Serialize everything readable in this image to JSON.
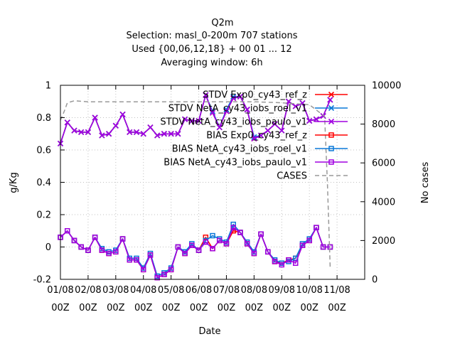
{
  "chart_data": {
    "type": "line",
    "title": "Q2m",
    "subtitle_lines": [
      "Selection: masl_0-200m    707 stations",
      "Used {00,06,12,18} + 00 01 ... 12",
      "Averaging window:  6h"
    ],
    "xlabel": "Date",
    "ylabel": "g/Kg",
    "y2label": "No cases",
    "xlim": [
      0,
      11
    ],
    "ylim": [
      -0.2,
      1.0
    ],
    "y2lim": [
      0,
      10000
    ],
    "x_ticks": [
      {
        "x": 0,
        "line1": "01/08",
        "line2": "00Z"
      },
      {
        "x": 1,
        "line1": "02/08",
        "line2": "00Z"
      },
      {
        "x": 2,
        "line1": "03/08",
        "line2": "00Z"
      },
      {
        "x": 3,
        "line1": "04/08",
        "line2": "00Z"
      },
      {
        "x": 4,
        "line1": "05/08",
        "line2": "00Z"
      },
      {
        "x": 5,
        "line1": "06/08",
        "line2": "00Z"
      },
      {
        "x": 6,
        "line1": "07/08",
        "line2": "00Z"
      },
      {
        "x": 7,
        "line1": "08/08",
        "line2": "00Z"
      },
      {
        "x": 8,
        "line1": "09/08",
        "line2": "00Z"
      },
      {
        "x": 9,
        "line1": "10/08",
        "line2": "00Z"
      },
      {
        "x": 10,
        "line1": "11/08",
        "line2": "00Z"
      }
    ],
    "y_ticks": [
      -0.2,
      0,
      0.2,
      0.4,
      0.6,
      0.8,
      1
    ],
    "y2_ticks": [
      0,
      2000,
      4000,
      6000,
      8000,
      10000
    ],
    "grid": true,
    "legend_position": "top-right",
    "x": [
      0,
      0.25,
      0.5,
      0.75,
      1,
      1.25,
      1.5,
      1.75,
      2,
      2.25,
      2.5,
      2.75,
      3,
      3.25,
      3.5,
      3.75,
      4,
      4.25,
      4.5,
      4.75,
      5,
      5.25,
      5.5,
      5.75,
      6,
      6.25,
      6.5,
      6.75,
      7,
      7.25,
      7.5,
      7.75,
      8,
      8.25,
      8.5,
      8.75,
      9,
      9.25,
      9.5,
      9.75
    ],
    "series": [
      {
        "name": "STDV Exp0_cy43_ref_z",
        "axis": "y1",
        "color": "#ff0000",
        "marker": "x",
        "values": [
          0.64,
          0.77,
          0.72,
          0.71,
          0.71,
          0.8,
          0.69,
          0.7,
          0.75,
          0.82,
          0.71,
          0.71,
          0.7,
          0.74,
          0.69,
          0.7,
          0.7,
          0.7,
          0.79,
          0.78,
          0.78,
          0.94,
          0.83,
          0.74,
          0.84,
          0.92,
          0.93,
          0.85,
          0.67,
          0.69,
          0.72,
          0.76,
          0.72,
          0.9,
          0.87,
          0.89,
          0.78,
          0.79,
          0.81,
          0.91
        ]
      },
      {
        "name": "STDV NetA_cy43_iobs_roel_v1",
        "axis": "y1",
        "color": "#0a78d8",
        "marker": "x",
        "values": [
          0.64,
          0.77,
          0.72,
          0.71,
          0.71,
          0.8,
          0.69,
          0.7,
          0.75,
          0.82,
          0.71,
          0.71,
          0.7,
          0.74,
          0.69,
          0.7,
          0.7,
          0.7,
          0.79,
          0.78,
          0.78,
          0.94,
          0.84,
          0.74,
          0.85,
          0.93,
          0.93,
          0.85,
          0.68,
          0.69,
          0.72,
          0.76,
          0.72,
          0.9,
          0.87,
          0.89,
          0.78,
          0.79,
          0.81,
          0.91
        ]
      },
      {
        "name": "STDV NetA_cy43_iobs_paulo_v1",
        "axis": "y1",
        "color": "#a000e0",
        "marker": "x",
        "values": [
          0.64,
          0.77,
          0.72,
          0.71,
          0.71,
          0.8,
          0.69,
          0.7,
          0.75,
          0.82,
          0.71,
          0.71,
          0.7,
          0.74,
          0.69,
          0.7,
          0.7,
          0.7,
          0.79,
          0.78,
          0.78,
          0.94,
          0.83,
          0.74,
          0.84,
          0.92,
          0.93,
          0.85,
          0.67,
          0.69,
          0.72,
          0.76,
          0.72,
          0.9,
          0.87,
          0.89,
          0.78,
          0.79,
          0.81,
          0.91
        ]
      },
      {
        "name": "BIAS Exp0_cy43_ref_z",
        "axis": "y1",
        "color": "#ff0000",
        "marker": "square",
        "values": [
          0.06,
          0.1,
          0.04,
          0.0,
          -0.02,
          0.06,
          -0.02,
          -0.04,
          -0.03,
          0.05,
          -0.08,
          -0.08,
          -0.14,
          -0.05,
          -0.19,
          -0.17,
          -0.14,
          0.0,
          -0.04,
          0.01,
          -0.02,
          0.06,
          -0.01,
          0.04,
          0.02,
          0.1,
          0.09,
          0.02,
          -0.04,
          0.08,
          -0.03,
          -0.09,
          -0.1,
          -0.08,
          -0.07,
          0.01,
          0.04,
          0.12,
          0.0,
          0.0
        ]
      },
      {
        "name": "BIAS NetA_cy43_iobs_roel_v1",
        "axis": "y1",
        "color": "#0a78d8",
        "marker": "square",
        "values": [
          0.06,
          0.1,
          0.04,
          0.0,
          -0.02,
          0.06,
          -0.01,
          -0.03,
          -0.02,
          0.05,
          -0.07,
          -0.07,
          -0.13,
          -0.04,
          -0.18,
          -0.16,
          -0.13,
          0.0,
          -0.03,
          0.02,
          -0.02,
          0.04,
          0.07,
          0.05,
          0.03,
          0.14,
          0.09,
          0.03,
          -0.03,
          0.08,
          -0.03,
          -0.08,
          -0.1,
          -0.09,
          -0.07,
          0.02,
          0.05,
          0.12,
          0.0,
          0.0
        ]
      },
      {
        "name": "BIAS NetA_cy43_iobs_paulo_v1",
        "axis": "y1",
        "color": "#a000e0",
        "marker": "square",
        "values": [
          0.06,
          0.1,
          0.04,
          0.0,
          -0.02,
          0.06,
          -0.02,
          -0.04,
          -0.03,
          0.05,
          -0.08,
          -0.08,
          -0.14,
          -0.05,
          -0.19,
          -0.17,
          -0.14,
          0.0,
          -0.04,
          0.01,
          -0.02,
          0.03,
          -0.01,
          0.04,
          0.02,
          0.12,
          0.09,
          0.02,
          -0.04,
          0.08,
          -0.03,
          -0.09,
          -0.11,
          -0.08,
          -0.1,
          0.01,
          0.04,
          0.12,
          0.0,
          0.0
        ]
      },
      {
        "name": "CASES",
        "axis": "y2",
        "color": "#999999",
        "style": "dashed",
        "x": [
          0,
          0.15,
          0.25,
          0.5,
          1,
          2,
          3,
          4,
          5,
          6,
          7,
          8,
          9,
          9.55,
          9.65,
          9.75
        ],
        "values": [
          8200,
          8700,
          9100,
          9200,
          9150,
          9150,
          9150,
          9150,
          9150,
          9150,
          9150,
          9100,
          9000,
          8400,
          5000,
          650
        ]
      }
    ]
  }
}
